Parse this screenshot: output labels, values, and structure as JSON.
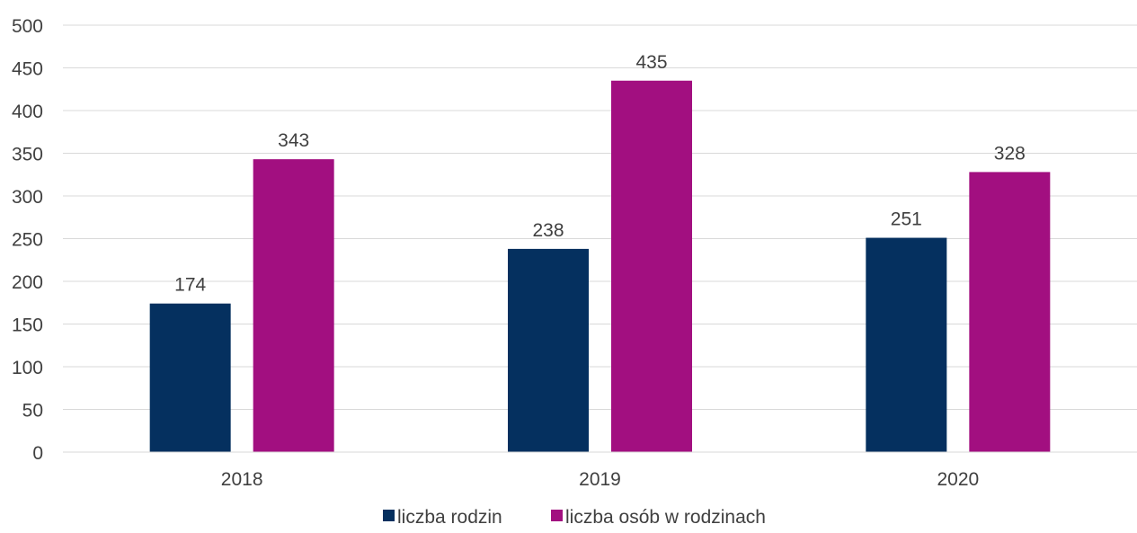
{
  "chart_data": {
    "type": "bar",
    "title": "",
    "xlabel": "",
    "ylabel": "",
    "categories": [
      "2018",
      "2019",
      "2020"
    ],
    "series": [
      {
        "name": "liczba rodzin",
        "values": [
          174,
          238,
          251
        ],
        "color": "#05305f"
      },
      {
        "name": "liczba osób w rodzinach",
        "values": [
          343,
          435,
          328
        ],
        "color": "#a20f80"
      }
    ],
    "ylim": [
      0,
      500
    ],
    "yticks": [
      "0",
      "50",
      "100",
      "150",
      "200",
      "250",
      "300",
      "350",
      "400",
      "450",
      "500"
    ],
    "grid": true,
    "gridline_color": "#d9d9d9",
    "legend_position": "bottom",
    "data_labels": true
  }
}
